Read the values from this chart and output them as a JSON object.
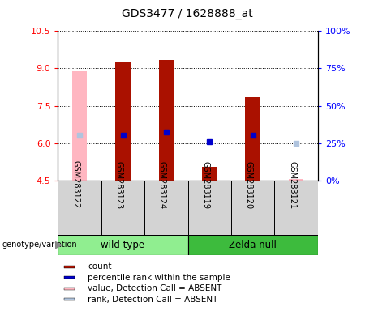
{
  "title": "GDS3477 / 1628888_at",
  "samples": [
    "GSM283122",
    "GSM283123",
    "GSM283124",
    "GSM283119",
    "GSM283120",
    "GSM283121"
  ],
  "groups": [
    {
      "name": "wild type",
      "indices": [
        0,
        1,
        2
      ],
      "color": "#90ee90"
    },
    {
      "name": "Zelda null",
      "indices": [
        3,
        4,
        5
      ],
      "color": "#3dbb3d"
    }
  ],
  "ylim": [
    4.5,
    10.5
  ],
  "yticks_left": [
    4.5,
    6.0,
    7.5,
    9.0,
    10.5
  ],
  "yticks_right_vals": [
    0,
    25,
    50,
    75,
    100
  ],
  "count_values": [
    null,
    9.25,
    9.35,
    5.05,
    7.85,
    null
  ],
  "rank_values": [
    null,
    6.3,
    6.45,
    6.05,
    6.3,
    null
  ],
  "value_absent": [
    8.9,
    null,
    null,
    null,
    null,
    4.55
  ],
  "rank_absent": [
    6.3,
    null,
    null,
    null,
    null,
    6.0
  ],
  "absent_samples": [
    0,
    5
  ],
  "bar_bottom": 4.5,
  "bar_width": 0.35,
  "count_color": "#aa1100",
  "rank_color": "#0000cc",
  "value_absent_color": "#ffb6c1",
  "rank_absent_color": "#b0c4de",
  "bg_color": "#d3d3d3",
  "legend_items": [
    {
      "label": "count",
      "color": "#aa1100"
    },
    {
      "label": "percentile rank within the sample",
      "color": "#0000cc"
    },
    {
      "label": "value, Detection Call = ABSENT",
      "color": "#ffb6c1"
    },
    {
      "label": "rank, Detection Call = ABSENT",
      "color": "#b0c4de"
    }
  ]
}
